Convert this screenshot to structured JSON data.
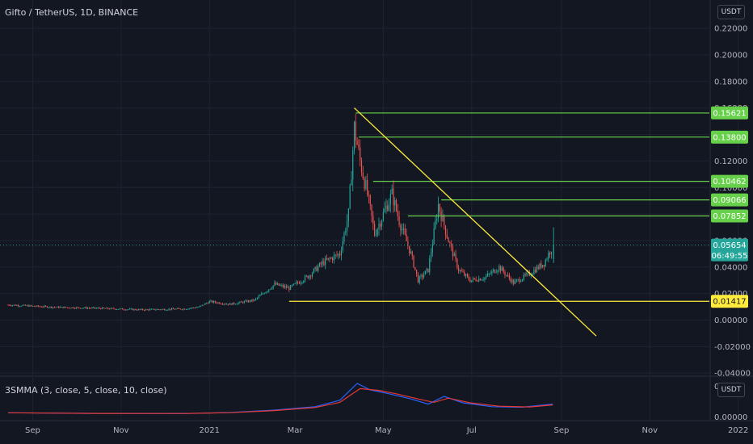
{
  "title": "Gifto / TetherUS, 1D, BINANCE",
  "currency_badge": "USDT",
  "indicator_title": "3SMMA (3, close, 5, close, 10, close)",
  "indicator_currency_badge": "USDT",
  "colors": {
    "background": "#131722",
    "grid": "#1f2330",
    "up": "#26a69a",
    "down": "#ef5350",
    "resistance": "#66d04a",
    "trendline": "#ffeb3b",
    "smma_blue": "#2962ff",
    "smma_red": "#e53935"
  },
  "chart_data": [
    {
      "type": "candlestick",
      "title": "Gifto / TetherUS, 1D, BINANCE",
      "x_ticks": [
        "Sep",
        "Nov",
        "2021",
        "Mar",
        "May",
        "Jul",
        "Sep",
        "Nov",
        "2022"
      ],
      "ylim": [
        -0.04,
        0.22
      ],
      "y_ticks": [
        "0.22000",
        "0.20000",
        "0.18000",
        "0.16000",
        "0.14000",
        "0.12000",
        "0.10000",
        "0.08000",
        "0.06000",
        "0.04000",
        "0.02000",
        "0.00000",
        "-0.02000",
        "-0.04000"
      ],
      "ohlc_points": [
        {
          "date": "2020-08-15",
          "close": 0.0115
        },
        {
          "date": "2020-09-15",
          "close": 0.0098
        },
        {
          "date": "2020-10-15",
          "close": 0.009
        },
        {
          "date": "2020-11-15",
          "close": 0.0078
        },
        {
          "date": "2020-12-15",
          "close": 0.0085
        },
        {
          "date": "2020-12-25",
          "close": 0.01
        },
        {
          "date": "2021-01-01",
          "close": 0.014
        },
        {
          "date": "2021-01-15",
          "close": 0.012
        },
        {
          "date": "2021-02-01",
          "close": 0.015
        },
        {
          "date": "2021-02-15",
          "close": 0.027
        },
        {
          "date": "2021-02-25",
          "close": 0.024
        },
        {
          "date": "2021-03-10",
          "close": 0.033
        },
        {
          "date": "2021-03-20",
          "close": 0.043
        },
        {
          "date": "2021-04-01",
          "close": 0.05
        },
        {
          "date": "2021-04-07",
          "close": 0.08
        },
        {
          "date": "2021-04-11",
          "close": 0.145
        },
        {
          "date": "2021-04-15",
          "close": 0.12
        },
        {
          "date": "2021-04-20",
          "close": 0.095
        },
        {
          "date": "2021-04-25",
          "close": 0.065
        },
        {
          "date": "2021-05-01",
          "close": 0.08
        },
        {
          "date": "2021-05-07",
          "close": 0.095
        },
        {
          "date": "2021-05-12",
          "close": 0.075
        },
        {
          "date": "2021-05-20",
          "close": 0.05
        },
        {
          "date": "2021-05-25",
          "close": 0.03
        },
        {
          "date": "2021-06-01",
          "close": 0.038
        },
        {
          "date": "2021-06-08",
          "close": 0.087
        },
        {
          "date": "2021-06-15",
          "close": 0.06
        },
        {
          "date": "2021-06-22",
          "close": 0.038
        },
        {
          "date": "2021-06-30",
          "close": 0.03
        },
        {
          "date": "2021-07-10",
          "close": 0.032
        },
        {
          "date": "2021-07-20",
          "close": 0.04
        },
        {
          "date": "2021-07-30",
          "close": 0.028
        },
        {
          "date": "2021-08-10",
          "close": 0.035
        },
        {
          "date": "2021-08-20",
          "close": 0.043
        },
        {
          "date": "2021-08-26",
          "close": 0.0565
        }
      ],
      "current_price": "0.05654",
      "countdown": "06:49:55",
      "horizontal_levels": [
        {
          "value": 0.15621,
          "label": "0.15621",
          "start": "2021-04-12",
          "color": "#66d04a"
        },
        {
          "value": 0.138,
          "label": "0.13800",
          "start": "2021-04-14",
          "color": "#66d04a"
        },
        {
          "value": 0.10462,
          "label": "0.10462",
          "start": "2021-04-24",
          "color": "#66d04a"
        },
        {
          "value": 0.09066,
          "label": "0.09066",
          "start": "2021-06-10",
          "color": "#66d04a"
        },
        {
          "value": 0.07852,
          "label": "0.07852",
          "start": "2021-05-18",
          "color": "#66d04a"
        },
        {
          "value": 0.01417,
          "label": "0.01417",
          "start": "2021-02-25",
          "color": "#ffeb3b"
        }
      ],
      "trendline": {
        "from": {
          "date": "2021-04-11",
          "value": 0.16
        },
        "to": {
          "date": "2021-09-25",
          "value": -0.012
        }
      }
    },
    {
      "type": "line",
      "title": "3SMMA (3, close, 5, close, 10, close)",
      "x_ticks": [
        "Sep",
        "Nov",
        "2021",
        "Mar",
        "May",
        "Jul",
        "Sep",
        "Nov",
        "2022"
      ],
      "y_ticks": [
        "0",
        "0.00000"
      ],
      "series": [
        {
          "color": "#2962ff",
          "points": [
            [
              "2020-08-15",
              0.0115
            ],
            [
              "2020-10-15",
              0.009
            ],
            [
              "2020-12-15",
              0.0085
            ],
            [
              "2021-01-15",
              0.0125
            ],
            [
              "2021-02-15",
              0.022
            ],
            [
              "2021-03-15",
              0.035
            ],
            [
              "2021-04-01",
              0.06
            ],
            [
              "2021-04-13",
              0.125
            ],
            [
              "2021-04-22",
              0.1
            ],
            [
              "2021-05-05",
              0.085
            ],
            [
              "2021-05-20",
              0.065
            ],
            [
              "2021-06-01",
              0.045
            ],
            [
              "2021-06-12",
              0.075
            ],
            [
              "2021-06-25",
              0.05
            ],
            [
              "2021-07-15",
              0.035
            ],
            [
              "2021-08-05",
              0.033
            ],
            [
              "2021-08-26",
              0.045
            ]
          ]
        },
        {
          "color": "#e53935",
          "points": [
            [
              "2020-08-15",
              0.0115
            ],
            [
              "2020-10-15",
              0.0092
            ],
            [
              "2020-12-15",
              0.0088
            ],
            [
              "2021-01-15",
              0.012
            ],
            [
              "2021-02-15",
              0.02
            ],
            [
              "2021-03-15",
              0.032
            ],
            [
              "2021-04-01",
              0.052
            ],
            [
              "2021-04-15",
              0.105
            ],
            [
              "2021-04-28",
              0.098
            ],
            [
              "2021-05-10",
              0.085
            ],
            [
              "2021-05-25",
              0.065
            ],
            [
              "2021-06-05",
              0.052
            ],
            [
              "2021-06-15",
              0.068
            ],
            [
              "2021-06-30",
              0.05
            ],
            [
              "2021-07-20",
              0.037
            ],
            [
              "2021-08-10",
              0.034
            ],
            [
              "2021-08-26",
              0.042
            ]
          ]
        }
      ]
    }
  ]
}
